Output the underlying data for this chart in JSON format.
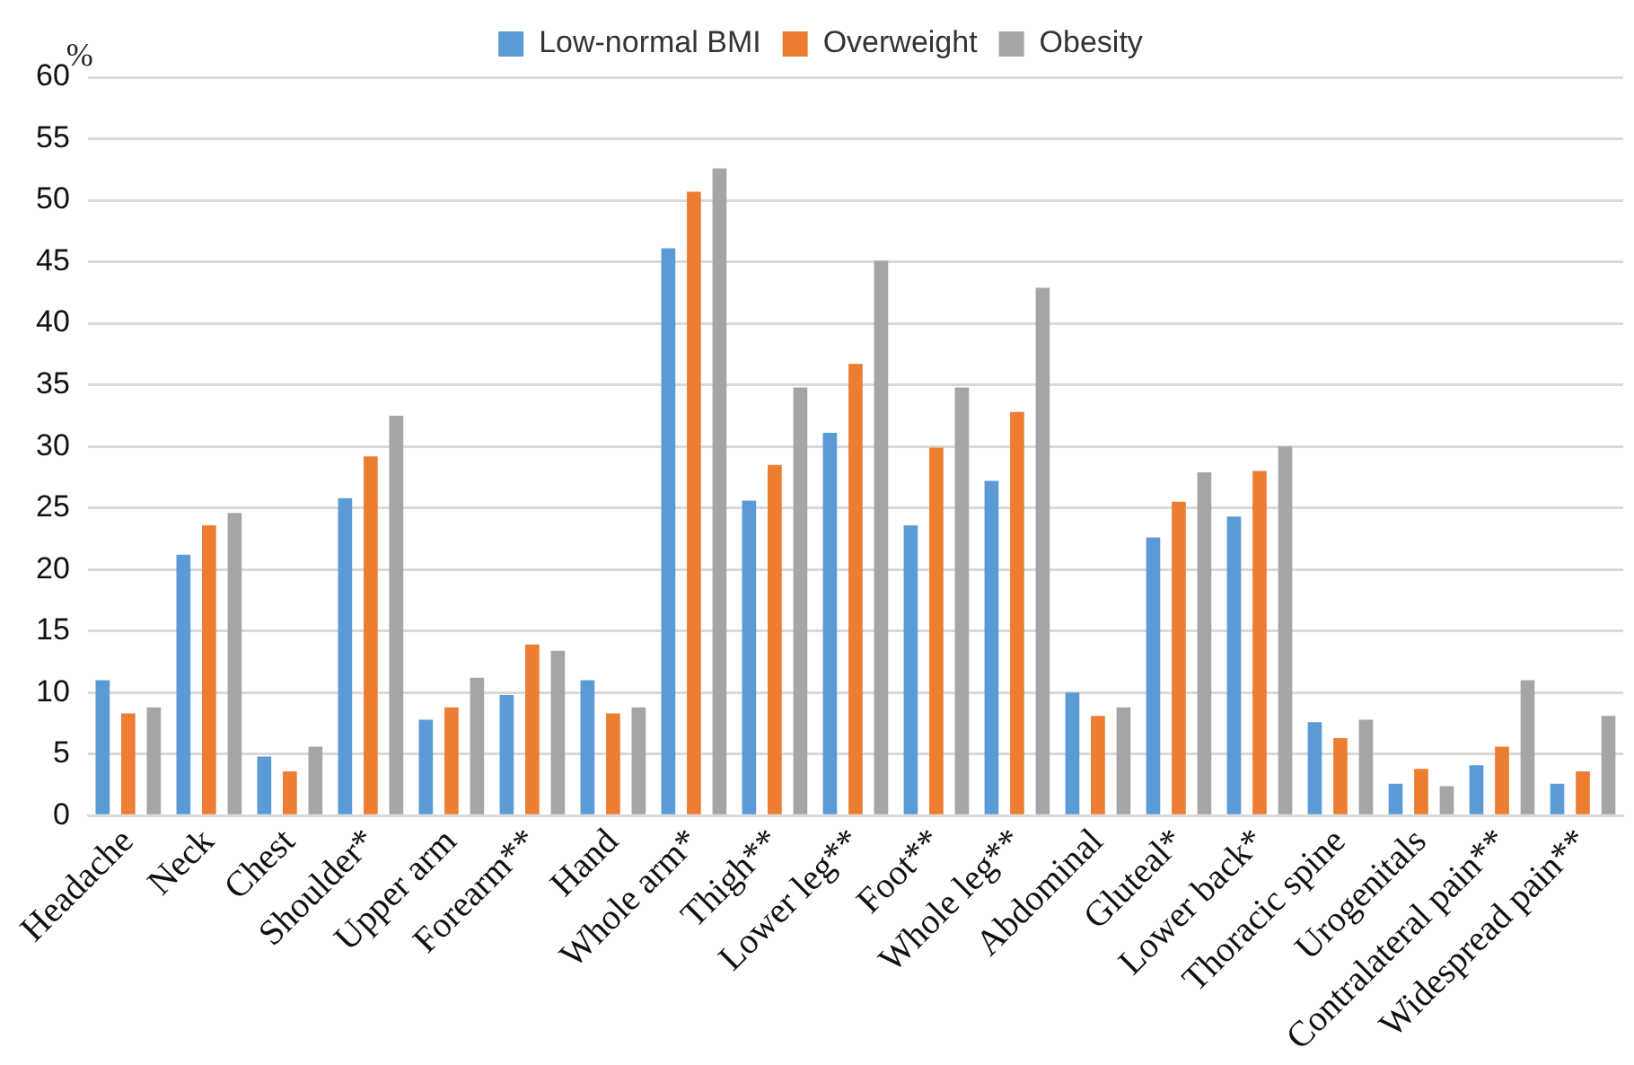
{
  "chart_data": {
    "type": "bar",
    "ylabel": "%",
    "categories": [
      "Headache",
      "Neck",
      "Chest",
      "Shoulder*",
      "Upper arm",
      "Forearm**",
      "Hand",
      "Whole arm*",
      "Thigh**",
      "Lower leg**",
      "Foot**",
      "Whole leg**",
      "Abdominal",
      "Gluteal*",
      "Lower back*",
      "Thoracic spine",
      "Urogenitals",
      "Contralateral pain**",
      "Widespread pain**"
    ],
    "series": [
      {
        "name": "Low-normal BMI",
        "color": "#5b9bd5",
        "values": [
          11,
          21.2,
          4.8,
          25.8,
          7.8,
          9.8,
          11,
          46.1,
          25.6,
          31.1,
          23.6,
          27.2,
          10,
          22.6,
          24.3,
          7.6,
          2.6,
          4.1,
          2.6
        ]
      },
      {
        "name": "Overweight",
        "color": "#ed7d31",
        "values": [
          8.3,
          23.6,
          3.6,
          29.2,
          8.8,
          13.9,
          8.3,
          50.7,
          28.5,
          36.7,
          29.9,
          32.8,
          8.1,
          25.5,
          28,
          6.3,
          3.8,
          5.6,
          3.6
        ]
      },
      {
        "name": "Obesity",
        "color": "#a5a5a5",
        "values": [
          8.8,
          24.6,
          5.6,
          32.5,
          11.2,
          13.4,
          8.8,
          52.6,
          34.8,
          45.1,
          34.8,
          42.9,
          8.8,
          27.9,
          30,
          7.8,
          2.4,
          11,
          8.1
        ]
      }
    ],
    "ylim": [
      0,
      60
    ],
    "yticks": [
      0,
      5,
      10,
      15,
      20,
      25,
      30,
      35,
      40,
      45,
      50,
      55,
      60
    ],
    "grid": "y",
    "legend": "top"
  }
}
